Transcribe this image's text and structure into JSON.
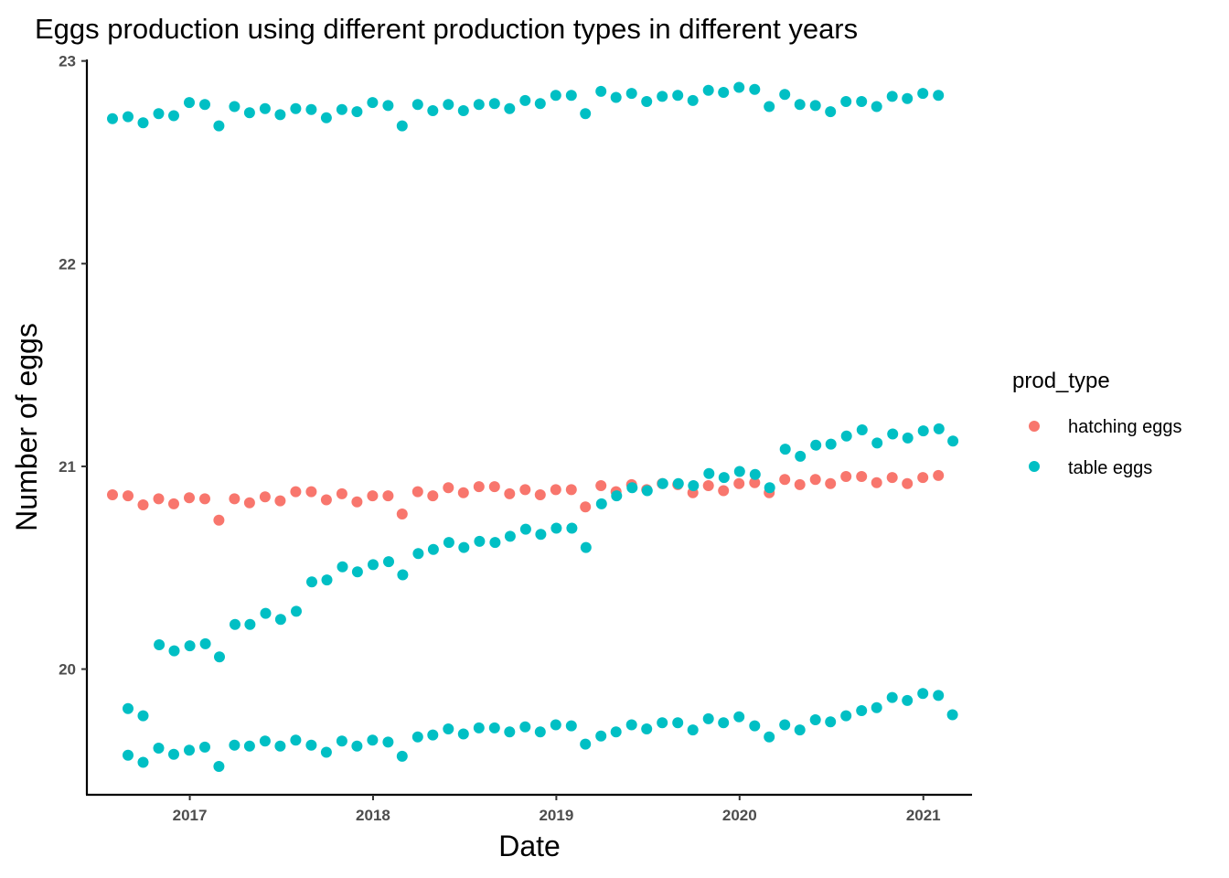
{
  "chart_data": {
    "type": "scatter",
    "title": "Eggs production using different production types in different years",
    "xlabel": "Date",
    "ylabel": "Number of eggs",
    "xlim": [
      "2016-06-10",
      "2021-04-08"
    ],
    "ylim": [
      19.38,
      23.03
    ],
    "x_ticks": [
      {
        "label": "2017",
        "date": "2017-01-01"
      },
      {
        "label": "2018",
        "date": "2018-01-01"
      },
      {
        "label": "2019",
        "date": "2019-01-01"
      },
      {
        "label": "2020",
        "date": "2020-01-01"
      },
      {
        "label": "2021",
        "date": "2021-01-01"
      }
    ],
    "y_ticks": [
      20,
      21,
      22,
      23
    ],
    "grid": false,
    "legend": {
      "title": "prod_type",
      "position": "right"
    },
    "series": [
      {
        "name": "hatching eggs",
        "color": "#F8766D",
        "points": [
          [
            "2016-07-31",
            20.86
          ],
          [
            "2016-08-31",
            20.855
          ],
          [
            "2016-09-30",
            20.81
          ],
          [
            "2016-10-31",
            20.84
          ],
          [
            "2016-11-30",
            20.815
          ],
          [
            "2016-12-31",
            20.845
          ],
          [
            "2017-01-31",
            20.84
          ],
          [
            "2017-02-28",
            20.735
          ],
          [
            "2017-03-31",
            20.84
          ],
          [
            "2017-04-30",
            20.82
          ],
          [
            "2017-05-31",
            20.85
          ],
          [
            "2017-06-30",
            20.83
          ],
          [
            "2017-07-31",
            20.875
          ],
          [
            "2017-08-31",
            20.875
          ],
          [
            "2017-09-30",
            20.835
          ],
          [
            "2017-10-31",
            20.865
          ],
          [
            "2017-11-30",
            20.825
          ],
          [
            "2017-12-31",
            20.855
          ],
          [
            "2018-01-31",
            20.855
          ],
          [
            "2018-02-28",
            20.765
          ],
          [
            "2018-03-31",
            20.875
          ],
          [
            "2018-04-30",
            20.855
          ],
          [
            "2018-05-31",
            20.895
          ],
          [
            "2018-06-30",
            20.87
          ],
          [
            "2018-07-31",
            20.9
          ],
          [
            "2018-08-31",
            20.9
          ],
          [
            "2018-09-30",
            20.865
          ],
          [
            "2018-10-31",
            20.885
          ],
          [
            "2018-11-30",
            20.86
          ],
          [
            "2018-12-31",
            20.885
          ],
          [
            "2019-01-31",
            20.885
          ],
          [
            "2019-02-28",
            20.8
          ],
          [
            "2019-03-31",
            20.905
          ],
          [
            "2019-04-30",
            20.875
          ],
          [
            "2019-05-31",
            20.91
          ],
          [
            "2019-06-30",
            20.885
          ],
          [
            "2019-07-31",
            20.915
          ],
          [
            "2019-08-31",
            20.91
          ],
          [
            "2019-09-30",
            20.87
          ],
          [
            "2019-10-31",
            20.905
          ],
          [
            "2019-11-30",
            20.88
          ],
          [
            "2019-12-31",
            20.915
          ],
          [
            "2020-01-31",
            20.92
          ],
          [
            "2020-02-29",
            20.87
          ],
          [
            "2020-03-31",
            20.935
          ],
          [
            "2020-04-30",
            20.91
          ],
          [
            "2020-05-31",
            20.935
          ],
          [
            "2020-06-30",
            20.915
          ],
          [
            "2020-07-31",
            20.95
          ],
          [
            "2020-08-31",
            20.95
          ],
          [
            "2020-09-30",
            20.92
          ],
          [
            "2020-10-31",
            20.945
          ],
          [
            "2020-11-30",
            20.915
          ],
          [
            "2020-12-31",
            20.945
          ],
          [
            "2021-01-31",
            20.955
          ]
        ]
      },
      {
        "name": "table eggs",
        "color": "#00BFC4",
        "points": [
          [
            "2016-07-31",
            22.715
          ],
          [
            "2016-08-31",
            22.725
          ],
          [
            "2016-09-30",
            22.695
          ],
          [
            "2016-10-31",
            22.74
          ],
          [
            "2016-11-30",
            22.73
          ],
          [
            "2016-12-31",
            22.795
          ],
          [
            "2017-01-31",
            22.785
          ],
          [
            "2017-02-28",
            22.68
          ],
          [
            "2017-03-31",
            22.775
          ],
          [
            "2017-04-30",
            22.745
          ],
          [
            "2017-05-31",
            22.765
          ],
          [
            "2017-06-30",
            22.735
          ],
          [
            "2017-07-31",
            22.765
          ],
          [
            "2017-08-31",
            22.76
          ],
          [
            "2017-09-30",
            22.72
          ],
          [
            "2017-10-31",
            22.76
          ],
          [
            "2017-11-30",
            22.75
          ],
          [
            "2017-12-31",
            22.795
          ],
          [
            "2018-01-31",
            22.78
          ],
          [
            "2018-02-28",
            22.68
          ],
          [
            "2018-03-31",
            22.785
          ],
          [
            "2018-04-30",
            22.755
          ],
          [
            "2018-05-31",
            22.785
          ],
          [
            "2018-06-30",
            22.755
          ],
          [
            "2018-07-31",
            22.785
          ],
          [
            "2018-08-31",
            22.79
          ],
          [
            "2018-09-30",
            22.765
          ],
          [
            "2018-10-31",
            22.805
          ],
          [
            "2018-11-30",
            22.79
          ],
          [
            "2018-12-31",
            22.83
          ],
          [
            "2019-01-31",
            22.83
          ],
          [
            "2019-02-28",
            22.74
          ],
          [
            "2019-03-31",
            22.85
          ],
          [
            "2019-04-30",
            22.82
          ],
          [
            "2019-05-31",
            22.84
          ],
          [
            "2019-06-30",
            22.8
          ],
          [
            "2019-07-31",
            22.825
          ],
          [
            "2019-08-31",
            22.83
          ],
          [
            "2019-09-30",
            22.805
          ],
          [
            "2019-10-31",
            22.855
          ],
          [
            "2019-11-30",
            22.845
          ],
          [
            "2019-12-31",
            22.87
          ],
          [
            "2020-01-31",
            22.86
          ],
          [
            "2020-02-29",
            22.775
          ],
          [
            "2020-03-31",
            22.835
          ],
          [
            "2020-04-30",
            22.785
          ],
          [
            "2020-05-31",
            22.78
          ],
          [
            "2020-06-30",
            22.75
          ],
          [
            "2020-07-31",
            22.8
          ],
          [
            "2020-08-31",
            22.8
          ],
          [
            "2020-09-30",
            22.775
          ],
          [
            "2020-10-31",
            22.825
          ],
          [
            "2020-11-30",
            22.815
          ],
          [
            "2020-12-31",
            22.84
          ],
          [
            "2021-01-31",
            22.83
          ],
          [
            "2016-11-01",
            20.12
          ],
          [
            "2016-12-01",
            20.09
          ],
          [
            "2017-01-01",
            20.115
          ],
          [
            "2017-02-01",
            20.125
          ],
          [
            "2017-03-01",
            20.06
          ],
          [
            "2017-04-01",
            20.22
          ],
          [
            "2017-05-01",
            20.22
          ],
          [
            "2017-06-01",
            20.275
          ],
          [
            "2017-07-01",
            20.245
          ],
          [
            "2017-08-01",
            20.285
          ],
          [
            "2017-09-01",
            20.43
          ],
          [
            "2017-10-01",
            20.44
          ],
          [
            "2017-11-01",
            20.505
          ],
          [
            "2017-12-01",
            20.48
          ],
          [
            "2018-01-01",
            20.515
          ],
          [
            "2018-02-01",
            20.53
          ],
          [
            "2018-03-01",
            20.465
          ],
          [
            "2018-04-01",
            20.57
          ],
          [
            "2018-05-01",
            20.59
          ],
          [
            "2018-06-01",
            20.625
          ],
          [
            "2018-07-01",
            20.6
          ],
          [
            "2018-08-01",
            20.63
          ],
          [
            "2018-09-01",
            20.625
          ],
          [
            "2018-10-01",
            20.655
          ],
          [
            "2018-11-01",
            20.69
          ],
          [
            "2018-12-01",
            20.665
          ],
          [
            "2019-01-01",
            20.695
          ],
          [
            "2019-02-01",
            20.695
          ],
          [
            "2019-03-01",
            20.6
          ],
          [
            "2019-04-01",
            20.815
          ],
          [
            "2019-05-01",
            20.855
          ],
          [
            "2019-06-01",
            20.895
          ],
          [
            "2019-07-01",
            20.88
          ],
          [
            "2019-08-01",
            20.915
          ],
          [
            "2019-09-01",
            20.915
          ],
          [
            "2019-10-01",
            20.905
          ],
          [
            "2019-11-01",
            20.965
          ],
          [
            "2019-12-01",
            20.945
          ],
          [
            "2020-01-01",
            20.975
          ],
          [
            "2020-02-01",
            20.96
          ],
          [
            "2020-03-01",
            20.895
          ],
          [
            "2020-04-01",
            21.085
          ],
          [
            "2020-05-01",
            21.05
          ],
          [
            "2020-06-01",
            21.105
          ],
          [
            "2020-07-01",
            21.11
          ],
          [
            "2020-08-01",
            21.15
          ],
          [
            "2020-09-01",
            21.18
          ],
          [
            "2020-10-01",
            21.115
          ],
          [
            "2020-11-01",
            21.16
          ],
          [
            "2020-12-01",
            21.14
          ],
          [
            "2021-01-01",
            21.175
          ],
          [
            "2021-02-01",
            21.185
          ],
          [
            "2021-03-01",
            21.125
          ],
          [
            "2016-08-31",
            19.805
          ],
          [
            "2016-09-30",
            19.77
          ],
          [
            "2016-08-31",
            19.575
          ],
          [
            "2016-09-30",
            19.54
          ],
          [
            "2016-10-31",
            19.61
          ],
          [
            "2016-11-30",
            19.58
          ],
          [
            "2016-12-31",
            19.6
          ],
          [
            "2017-01-31",
            19.615
          ],
          [
            "2017-02-28",
            19.52
          ],
          [
            "2017-03-31",
            19.625
          ],
          [
            "2017-04-30",
            19.62
          ],
          [
            "2017-05-31",
            19.645
          ],
          [
            "2017-06-30",
            19.62
          ],
          [
            "2017-07-31",
            19.65
          ],
          [
            "2017-08-31",
            19.625
          ],
          [
            "2017-09-30",
            19.59
          ],
          [
            "2017-10-31",
            19.645
          ],
          [
            "2017-11-30",
            19.62
          ],
          [
            "2017-12-31",
            19.65
          ],
          [
            "2018-01-31",
            19.64
          ],
          [
            "2018-02-28",
            19.57
          ],
          [
            "2018-03-31",
            19.665
          ],
          [
            "2018-04-30",
            19.675
          ],
          [
            "2018-05-31",
            19.705
          ],
          [
            "2018-06-30",
            19.68
          ],
          [
            "2018-07-31",
            19.71
          ],
          [
            "2018-08-31",
            19.71
          ],
          [
            "2018-09-30",
            19.69
          ],
          [
            "2018-10-31",
            19.715
          ],
          [
            "2018-11-30",
            19.69
          ],
          [
            "2018-12-31",
            19.725
          ],
          [
            "2019-01-31",
            19.72
          ],
          [
            "2019-02-28",
            19.63
          ],
          [
            "2019-03-31",
            19.67
          ],
          [
            "2019-04-30",
            19.69
          ],
          [
            "2019-05-31",
            19.725
          ],
          [
            "2019-06-30",
            19.705
          ],
          [
            "2019-07-31",
            19.735
          ],
          [
            "2019-08-31",
            19.735
          ],
          [
            "2019-09-30",
            19.7
          ],
          [
            "2019-10-31",
            19.755
          ],
          [
            "2019-11-30",
            19.735
          ],
          [
            "2019-12-31",
            19.765
          ],
          [
            "2020-01-31",
            19.72
          ],
          [
            "2020-02-29",
            19.665
          ],
          [
            "2020-03-31",
            19.725
          ],
          [
            "2020-04-30",
            19.7
          ],
          [
            "2020-05-31",
            19.75
          ],
          [
            "2020-06-30",
            19.74
          ],
          [
            "2020-07-31",
            19.77
          ],
          [
            "2020-08-31",
            19.795
          ],
          [
            "2020-09-30",
            19.81
          ],
          [
            "2020-10-31",
            19.86
          ],
          [
            "2020-11-30",
            19.845
          ],
          [
            "2020-12-31",
            19.88
          ],
          [
            "2021-01-31",
            19.87
          ],
          [
            "2021-02-28",
            19.775
          ]
        ]
      }
    ]
  }
}
